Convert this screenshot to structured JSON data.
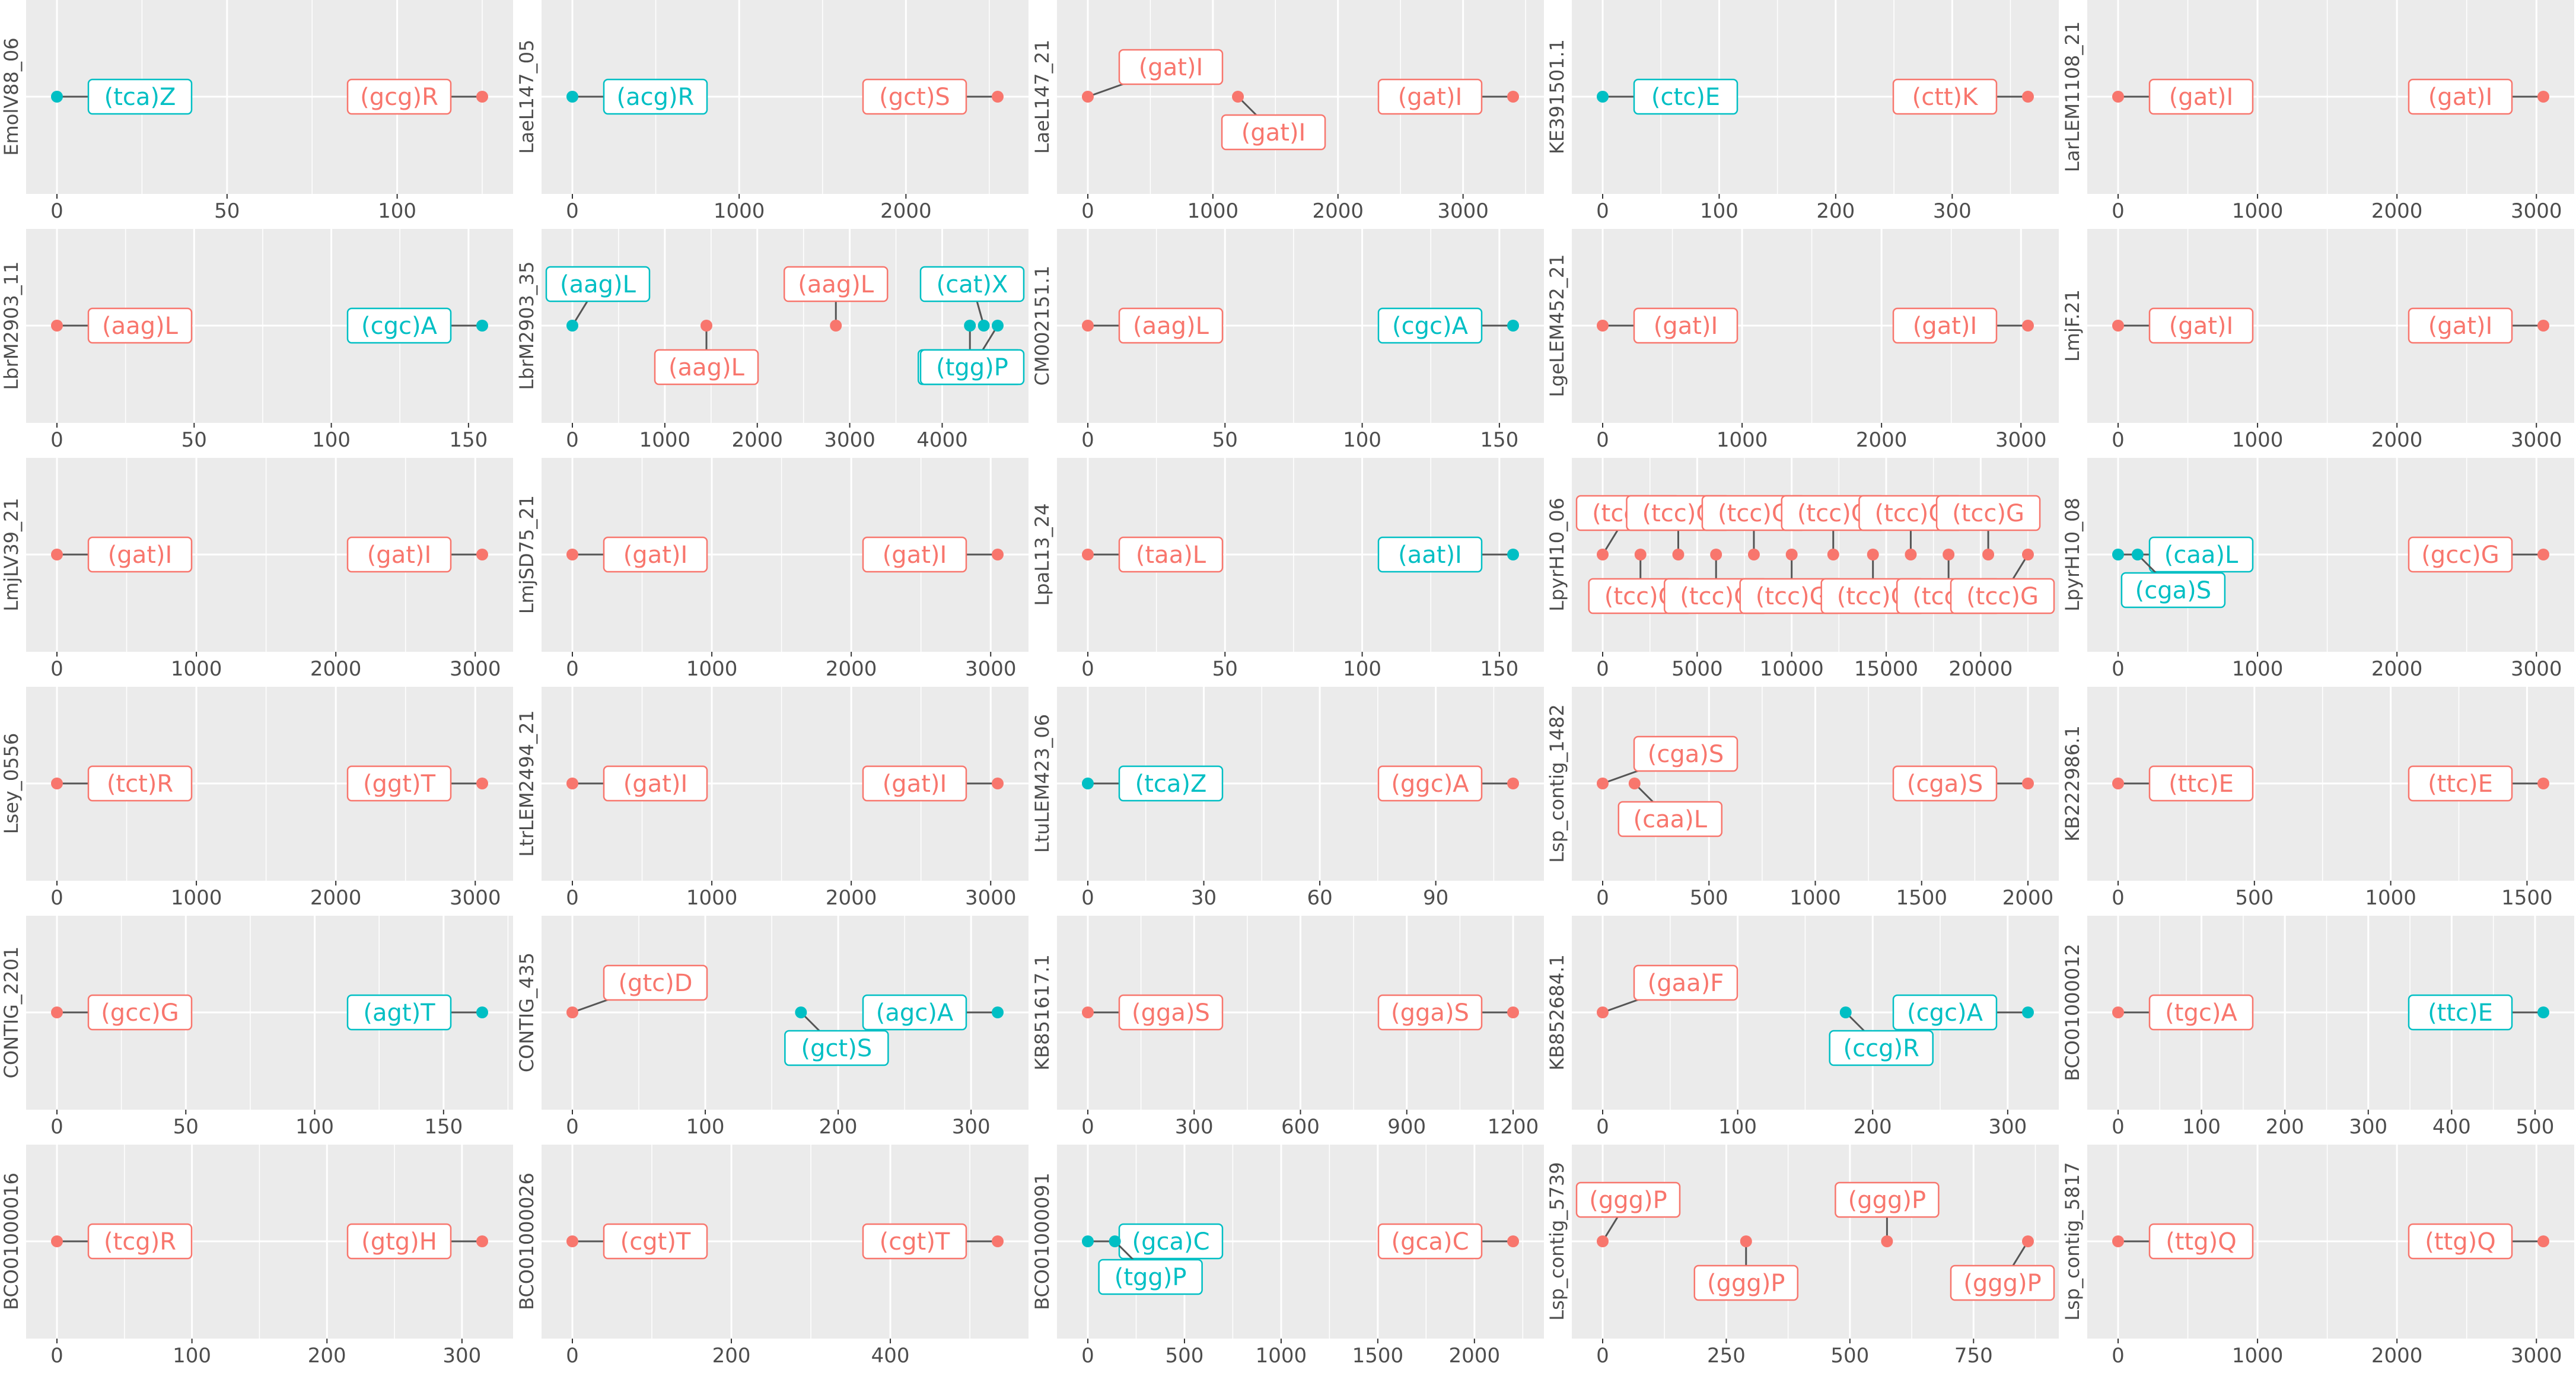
{
  "colors": {
    "red": "#F8766D",
    "teal": "#00BFC4",
    "panel_bg": "#EBEBEB",
    "grid": "#FFFFFF",
    "axis_text": "#4D4D4D",
    "strip_text": "#4D4D4D"
  },
  "chart_data": [
    {
      "type": "scatter",
      "ylabel": "EmolV88_06",
      "xlim": [
        0,
        125
      ],
      "ticks": [
        0,
        50,
        100
      ],
      "tick_labels": [
        "0",
        "50",
        "100"
      ],
      "points": [
        {
          "x": 0,
          "color": "teal",
          "label": "(tca)Z"
        },
        {
          "x": 125,
          "color": "red",
          "label": "(gcg)R"
        }
      ]
    },
    {
      "type": "scatter",
      "ylabel": "LaeL147_05",
      "xlim": [
        0,
        2550
      ],
      "ticks": [
        0,
        1000,
        2000
      ],
      "tick_labels": [
        "0",
        "1000",
        "2000"
      ],
      "points": [
        {
          "x": 0,
          "color": "teal",
          "label": "(acg)R"
        },
        {
          "x": 2550,
          "color": "red",
          "label": "(gct)S"
        }
      ]
    },
    {
      "type": "scatter",
      "ylabel": "LaeL147_21",
      "xlim": [
        0,
        3400
      ],
      "ticks": [
        0,
        1000,
        2000,
        3000
      ],
      "tick_labels": [
        "0",
        "1000",
        "2000",
        "3000"
      ],
      "points": [
        {
          "x": 0,
          "color": "red",
          "label": "(gat)I"
        },
        {
          "x": 1200,
          "color": "red",
          "label": "(gat)I"
        },
        {
          "x": 3400,
          "color": "red",
          "label": "(gat)I"
        }
      ]
    },
    {
      "type": "scatter",
      "ylabel": "KE391501.1",
      "xlim": [
        0,
        365
      ],
      "ticks": [
        0,
        100,
        200,
        300
      ],
      "tick_labels": [
        "0",
        "100",
        "200",
        "300"
      ],
      "points": [
        {
          "x": 0,
          "color": "teal",
          "label": "(ctc)E"
        },
        {
          "x": 365,
          "color": "red",
          "label": "(ctt)K"
        }
      ]
    },
    {
      "type": "scatter",
      "ylabel": "LarLEM1108_21",
      "xlim": [
        0,
        3050
      ],
      "ticks": [
        0,
        1000,
        2000,
        3000
      ],
      "tick_labels": [
        "0",
        "1000",
        "2000",
        "3000"
      ],
      "points": [
        {
          "x": 0,
          "color": "red",
          "label": "(gat)I"
        },
        {
          "x": 3050,
          "color": "red",
          "label": "(gat)I"
        }
      ]
    },
    {
      "type": "scatter",
      "ylabel": "LbrM2903_11",
      "xlim": [
        0,
        155
      ],
      "ticks": [
        0,
        50,
        100,
        150
      ],
      "tick_labels": [
        "0",
        "50",
        "100",
        "150"
      ],
      "points": [
        {
          "x": 0,
          "color": "red",
          "label": "(aag)L"
        },
        {
          "x": 155,
          "color": "teal",
          "label": "(cgc)A"
        }
      ]
    },
    {
      "type": "scatter",
      "ylabel": "LbrM2903_35",
      "xlim": [
        0,
        4600
      ],
      "ticks": [
        0,
        1000,
        2000,
        3000,
        4000
      ],
      "tick_labels": [
        "0",
        "1000",
        "2000",
        "3000",
        "4000"
      ],
      "points": [
        {
          "x": 0,
          "color": "teal",
          "label": "(aag)L"
        },
        {
          "x": 1450,
          "color": "red",
          "label": "(aag)L"
        },
        {
          "x": 2850,
          "color": "red",
          "label": "(aag)L"
        },
        {
          "x": 4300,
          "color": "teal",
          "label": "(aag)L"
        },
        {
          "x": 4450,
          "color": "teal",
          "label": "(cat)X"
        },
        {
          "x": 4600,
          "color": "teal",
          "label": "(tgg)P"
        }
      ]
    },
    {
      "type": "scatter",
      "ylabel": "CM002151.1",
      "xlim": [
        0,
        155
      ],
      "ticks": [
        0,
        50,
        100,
        150
      ],
      "tick_labels": [
        "0",
        "50",
        "100",
        "150"
      ],
      "points": [
        {
          "x": 0,
          "color": "red",
          "label": "(aag)L"
        },
        {
          "x": 155,
          "color": "teal",
          "label": "(cgc)A"
        }
      ]
    },
    {
      "type": "scatter",
      "ylabel": "LgeLEM452_21",
      "xlim": [
        0,
        3050
      ],
      "ticks": [
        0,
        1000,
        2000,
        3000
      ],
      "tick_labels": [
        "0",
        "1000",
        "2000",
        "3000"
      ],
      "points": [
        {
          "x": 0,
          "color": "red",
          "label": "(gat)I"
        },
        {
          "x": 3050,
          "color": "red",
          "label": "(gat)I"
        }
      ]
    },
    {
      "type": "scatter",
      "ylabel": "LmjF.21",
      "xlim": [
        0,
        3050
      ],
      "ticks": [
        0,
        1000,
        2000,
        3000
      ],
      "tick_labels": [
        "0",
        "1000",
        "2000",
        "3000"
      ],
      "points": [
        {
          "x": 0,
          "color": "red",
          "label": "(gat)I"
        },
        {
          "x": 3050,
          "color": "red",
          "label": "(gat)I"
        }
      ]
    },
    {
      "type": "scatter",
      "ylabel": "LmjLV39_21",
      "xlim": [
        0,
        3050
      ],
      "ticks": [
        0,
        1000,
        2000,
        3000
      ],
      "tick_labels": [
        "0",
        "1000",
        "2000",
        "3000"
      ],
      "points": [
        {
          "x": 0,
          "color": "red",
          "label": "(gat)I"
        },
        {
          "x": 3050,
          "color": "red",
          "label": "(gat)I"
        }
      ]
    },
    {
      "type": "scatter",
      "ylabel": "LmjSD75_21",
      "xlim": [
        0,
        3050
      ],
      "ticks": [
        0,
        1000,
        2000,
        3000
      ],
      "tick_labels": [
        "0",
        "1000",
        "2000",
        "3000"
      ],
      "points": [
        {
          "x": 0,
          "color": "red",
          "label": "(gat)I"
        },
        {
          "x": 3050,
          "color": "red",
          "label": "(gat)I"
        }
      ]
    },
    {
      "type": "scatter",
      "ylabel": "LpaL13_24",
      "xlim": [
        0,
        155
      ],
      "ticks": [
        0,
        50,
        100,
        150
      ],
      "tick_labels": [
        "0",
        "50",
        "100",
        "150"
      ],
      "points": [
        {
          "x": 0,
          "color": "red",
          "label": "(taa)L"
        },
        {
          "x": 155,
          "color": "teal",
          "label": "(aat)I"
        }
      ]
    },
    {
      "type": "scatter",
      "ylabel": "LpyrH10_06",
      "xlim": [
        0,
        22500
      ],
      "ticks": [
        0,
        5000,
        10000,
        15000,
        20000
      ],
      "tick_labels": [
        "0",
        "5000",
        "10000",
        "15000",
        "20000"
      ],
      "points": [
        {
          "x": 0,
          "color": "red",
          "label": "(tcc)G"
        },
        {
          "x": 2000,
          "color": "red",
          "label": "(tcc)G"
        },
        {
          "x": 4000,
          "color": "red",
          "label": "(tcc)G"
        },
        {
          "x": 6000,
          "color": "red",
          "label": "(tcc)G"
        },
        {
          "x": 8000,
          "color": "red",
          "label": "(tcc)G"
        },
        {
          "x": 10000,
          "color": "red",
          "label": "(tcc)G"
        },
        {
          "x": 12200,
          "color": "red",
          "label": "(tcc)G"
        },
        {
          "x": 14300,
          "color": "red",
          "label": "(tcc)G"
        },
        {
          "x": 16300,
          "color": "red",
          "label": "(tcc)G"
        },
        {
          "x": 18300,
          "color": "red",
          "label": "(tcc)G"
        },
        {
          "x": 20400,
          "color": "red",
          "label": "(tcc)G"
        },
        {
          "x": 22500,
          "color": "red",
          "label": "(tcc)G"
        }
      ]
    },
    {
      "type": "scatter",
      "ylabel": "LpyrH10_08",
      "xlim": [
        0,
        3050
      ],
      "ticks": [
        0,
        1000,
        2000,
        3000
      ],
      "tick_labels": [
        "0",
        "1000",
        "2000",
        "3000"
      ],
      "points": [
        {
          "x": 0,
          "color": "teal",
          "label": "(caa)L"
        },
        {
          "x": 140,
          "color": "teal",
          "label": "(cga)S"
        },
        {
          "x": 3050,
          "color": "red",
          "label": "(gcc)G"
        }
      ]
    },
    {
      "type": "scatter",
      "ylabel": "Lsey_0556",
      "xlim": [
        0,
        3050
      ],
      "ticks": [
        0,
        1000,
        2000,
        3000
      ],
      "tick_labels": [
        "0",
        "1000",
        "2000",
        "3000"
      ],
      "points": [
        {
          "x": 0,
          "color": "red",
          "label": "(tct)R"
        },
        {
          "x": 3050,
          "color": "red",
          "label": "(ggt)T"
        }
      ]
    },
    {
      "type": "scatter",
      "ylabel": "LtrLEM2494_21",
      "xlim": [
        0,
        3050
      ],
      "ticks": [
        0,
        1000,
        2000,
        3000
      ],
      "tick_labels": [
        "0",
        "1000",
        "2000",
        "3000"
      ],
      "points": [
        {
          "x": 0,
          "color": "red",
          "label": "(gat)I"
        },
        {
          "x": 3050,
          "color": "red",
          "label": "(gat)I"
        }
      ]
    },
    {
      "type": "scatter",
      "ylabel": "LtuLEM423_06",
      "xlim": [
        0,
        110
      ],
      "ticks": [
        0,
        30,
        60,
        90
      ],
      "tick_labels": [
        "0",
        "30",
        "60",
        "90"
      ],
      "points": [
        {
          "x": 0,
          "color": "teal",
          "label": "(tca)Z"
        },
        {
          "x": 110,
          "color": "red",
          "label": "(ggc)A"
        }
      ]
    },
    {
      "type": "scatter",
      "ylabel": "Lsp_contig_1482",
      "xlim": [
        0,
        2000
      ],
      "ticks": [
        0,
        500,
        1000,
        1500,
        2000
      ],
      "tick_labels": [
        "0",
        "500",
        "1000",
        "1500",
        "2000"
      ],
      "points": [
        {
          "x": 0,
          "color": "red",
          "label": "(cga)S"
        },
        {
          "x": 150,
          "color": "red",
          "label": "(caa)L"
        },
        {
          "x": 2000,
          "color": "red",
          "label": "(cga)S"
        }
      ]
    },
    {
      "type": "scatter",
      "ylabel": "KB222986.1",
      "xlim": [
        0,
        1560
      ],
      "ticks": [
        0,
        500,
        1000,
        1500
      ],
      "tick_labels": [
        "0",
        "500",
        "1000",
        "1500"
      ],
      "points": [
        {
          "x": 0,
          "color": "red",
          "label": "(ttc)E"
        },
        {
          "x": 1560,
          "color": "red",
          "label": "(ttc)E"
        }
      ]
    },
    {
      "type": "scatter",
      "ylabel": "CONTIG_2201",
      "xlim": [
        0,
        165
      ],
      "ticks": [
        0,
        50,
        100,
        150
      ],
      "tick_labels": [
        "0",
        "50",
        "100",
        "150"
      ],
      "points": [
        {
          "x": 0,
          "color": "red",
          "label": "(gcc)G"
        },
        {
          "x": 165,
          "color": "teal",
          "label": "(agt)T"
        }
      ]
    },
    {
      "type": "scatter",
      "ylabel": "CONTIG_435",
      "xlim": [
        0,
        320
      ],
      "ticks": [
        0,
        100,
        200,
        300
      ],
      "tick_labels": [
        "0",
        "100",
        "200",
        "300"
      ],
      "points": [
        {
          "x": 0,
          "color": "red",
          "label": "(gtc)D"
        },
        {
          "x": 172,
          "color": "teal",
          "label": "(gct)S"
        },
        {
          "x": 320,
          "color": "teal",
          "label": "(agc)A"
        }
      ]
    },
    {
      "type": "scatter",
      "ylabel": "KB851617.1",
      "xlim": [
        0,
        1200
      ],
      "ticks": [
        0,
        300,
        600,
        900,
        1200
      ],
      "tick_labels": [
        "0",
        "300",
        "600",
        "900",
        "1200"
      ],
      "points": [
        {
          "x": 0,
          "color": "red",
          "label": "(gga)S"
        },
        {
          "x": 1200,
          "color": "red",
          "label": "(gga)S"
        }
      ]
    },
    {
      "type": "scatter",
      "ylabel": "KB852684.1",
      "xlim": [
        0,
        315
      ],
      "ticks": [
        0,
        100,
        200,
        300
      ],
      "tick_labels": [
        "0",
        "100",
        "200",
        "300"
      ],
      "points": [
        {
          "x": 0,
          "color": "red",
          "label": "(gaa)F"
        },
        {
          "x": 180,
          "color": "teal",
          "label": "(ccg)R"
        },
        {
          "x": 315,
          "color": "teal",
          "label": "(cgc)A"
        }
      ]
    },
    {
      "type": "scatter",
      "ylabel": "BCO01000012",
      "xlim": [
        0,
        510
      ],
      "ticks": [
        0,
        100,
        200,
        300,
        400,
        500
      ],
      "tick_labels": [
        "0",
        "100",
        "200",
        "300",
        "400",
        "500"
      ],
      "points": [
        {
          "x": 0,
          "color": "red",
          "label": "(tgc)A"
        },
        {
          "x": 510,
          "color": "teal",
          "label": "(ttc)E"
        }
      ]
    },
    {
      "type": "scatter",
      "ylabel": "BCO01000016",
      "xlim": [
        0,
        315
      ],
      "ticks": [
        0,
        100,
        200,
        300
      ],
      "tick_labels": [
        "0",
        "100",
        "200",
        "300"
      ],
      "points": [
        {
          "x": 0,
          "color": "red",
          "label": "(tcg)R"
        },
        {
          "x": 315,
          "color": "red",
          "label": "(gtg)H"
        }
      ]
    },
    {
      "type": "scatter",
      "ylabel": "BCO01000026",
      "xlim": [
        0,
        535
      ],
      "ticks": [
        0,
        200,
        400
      ],
      "tick_labels": [
        "0",
        "200",
        "400"
      ],
      "points": [
        {
          "x": 0,
          "color": "red",
          "label": "(cgt)T"
        },
        {
          "x": 535,
          "color": "red",
          "label": "(cgt)T"
        }
      ]
    },
    {
      "type": "scatter",
      "ylabel": "BCO01000091",
      "xlim": [
        0,
        2200
      ],
      "ticks": [
        0,
        500,
        1000,
        1500,
        2000
      ],
      "tick_labels": [
        "0",
        "500",
        "1000",
        "1500",
        "2000"
      ],
      "points": [
        {
          "x": 0,
          "color": "teal",
          "label": "(gca)C"
        },
        {
          "x": 140,
          "color": "teal",
          "label": "(tgg)P"
        },
        {
          "x": 2200,
          "color": "red",
          "label": "(gca)C"
        }
      ]
    },
    {
      "type": "scatter",
      "ylabel": "Lsp_contig_5739",
      "xlim": [
        0,
        860
      ],
      "ticks": [
        0,
        250,
        500,
        750
      ],
      "tick_labels": [
        "0",
        "250",
        "500",
        "750"
      ],
      "points": [
        {
          "x": 0,
          "color": "red",
          "label": "(ggg)P"
        },
        {
          "x": 290,
          "color": "red",
          "label": "(ggg)P"
        },
        {
          "x": 575,
          "color": "red",
          "label": "(ggg)P"
        },
        {
          "x": 860,
          "color": "red",
          "label": "(ggg)P"
        }
      ]
    },
    {
      "type": "scatter",
      "ylabel": "Lsp_contig_5817",
      "xlim": [
        0,
        3050
      ],
      "ticks": [
        0,
        1000,
        2000,
        3000
      ],
      "tick_labels": [
        "0",
        "1000",
        "2000",
        "3000"
      ],
      "points": [
        {
          "x": 0,
          "color": "red",
          "label": "(ttg)Q"
        },
        {
          "x": 3050,
          "color": "red",
          "label": "(ttg)Q"
        }
      ]
    }
  ]
}
